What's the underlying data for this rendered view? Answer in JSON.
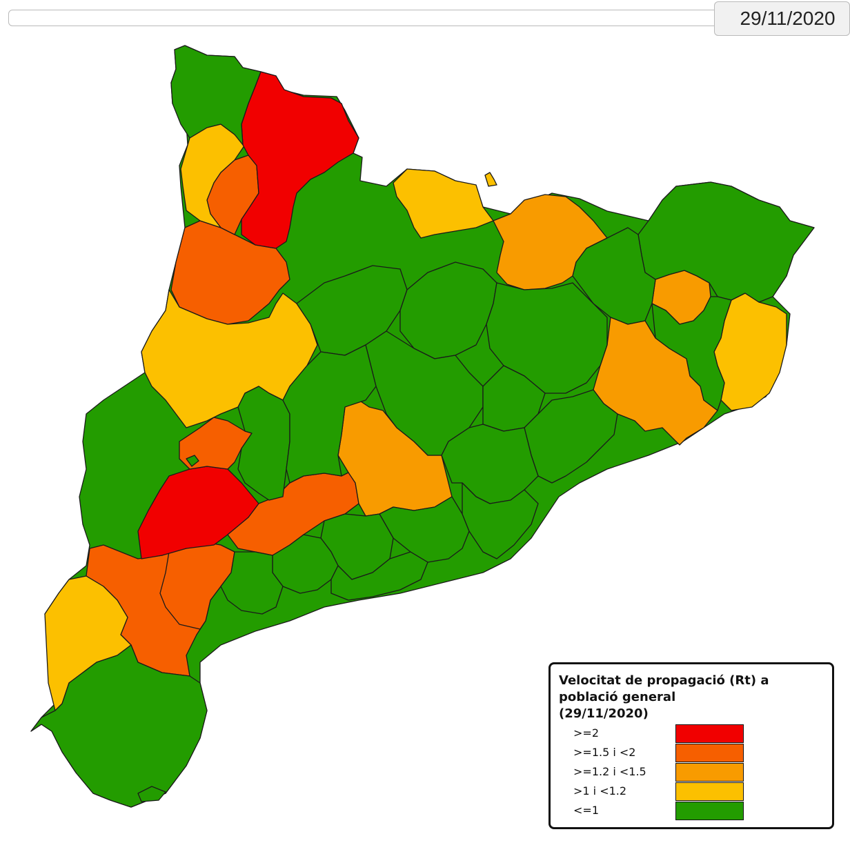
{
  "header": {
    "date_value": "29/11/2020"
  },
  "colors": {
    "ge2": "#f10000",
    "ge1_5_lt2": "#f65f00",
    "ge1_2_lt1_5": "#f89b00",
    "gt1_lt1_2": "#fcc000",
    "le1": "#239c00"
  },
  "legend": {
    "title_line1": "Velocitat de propagació (Rt) a",
    "title_line2": "població general",
    "title_line3": "(29/11/2020)",
    "items": [
      {
        "label": ">=2",
        "color": "#f10000"
      },
      {
        "label": ">=1.5 i <2",
        "color": "#f65f00"
      },
      {
        "label": ">=1.2 i <1.5",
        "color": "#f89b00"
      },
      {
        "label": ">1 i <1.2",
        "color": "#fcc000"
      },
      {
        "label": "<=1",
        "color": "#239c00"
      }
    ]
  }
}
